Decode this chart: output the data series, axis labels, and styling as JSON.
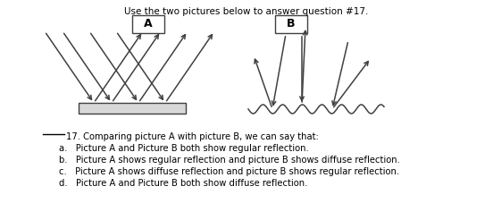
{
  "title": "Use the two pictures below to answer question #17.",
  "label_A": "A",
  "label_B": "B",
  "question": "17. Comparing picture A with picture B, we can say that:",
  "options": [
    "a.   Picture A and Picture B both show regular reflection.",
    "b.   Picture A shows regular reflection and picture B shows diffuse reflection.",
    "c.   Picture A shows diffuse reflection and picture B shows regular reflection.",
    "d.   Picture A and Picture B both show diffuse reflection."
  ],
  "bg_color": "#ffffff",
  "panel_bg": "#f2f2f2",
  "text_color": "#000000",
  "line_color": "#404040",
  "mirror_color": "#d8d8d8"
}
